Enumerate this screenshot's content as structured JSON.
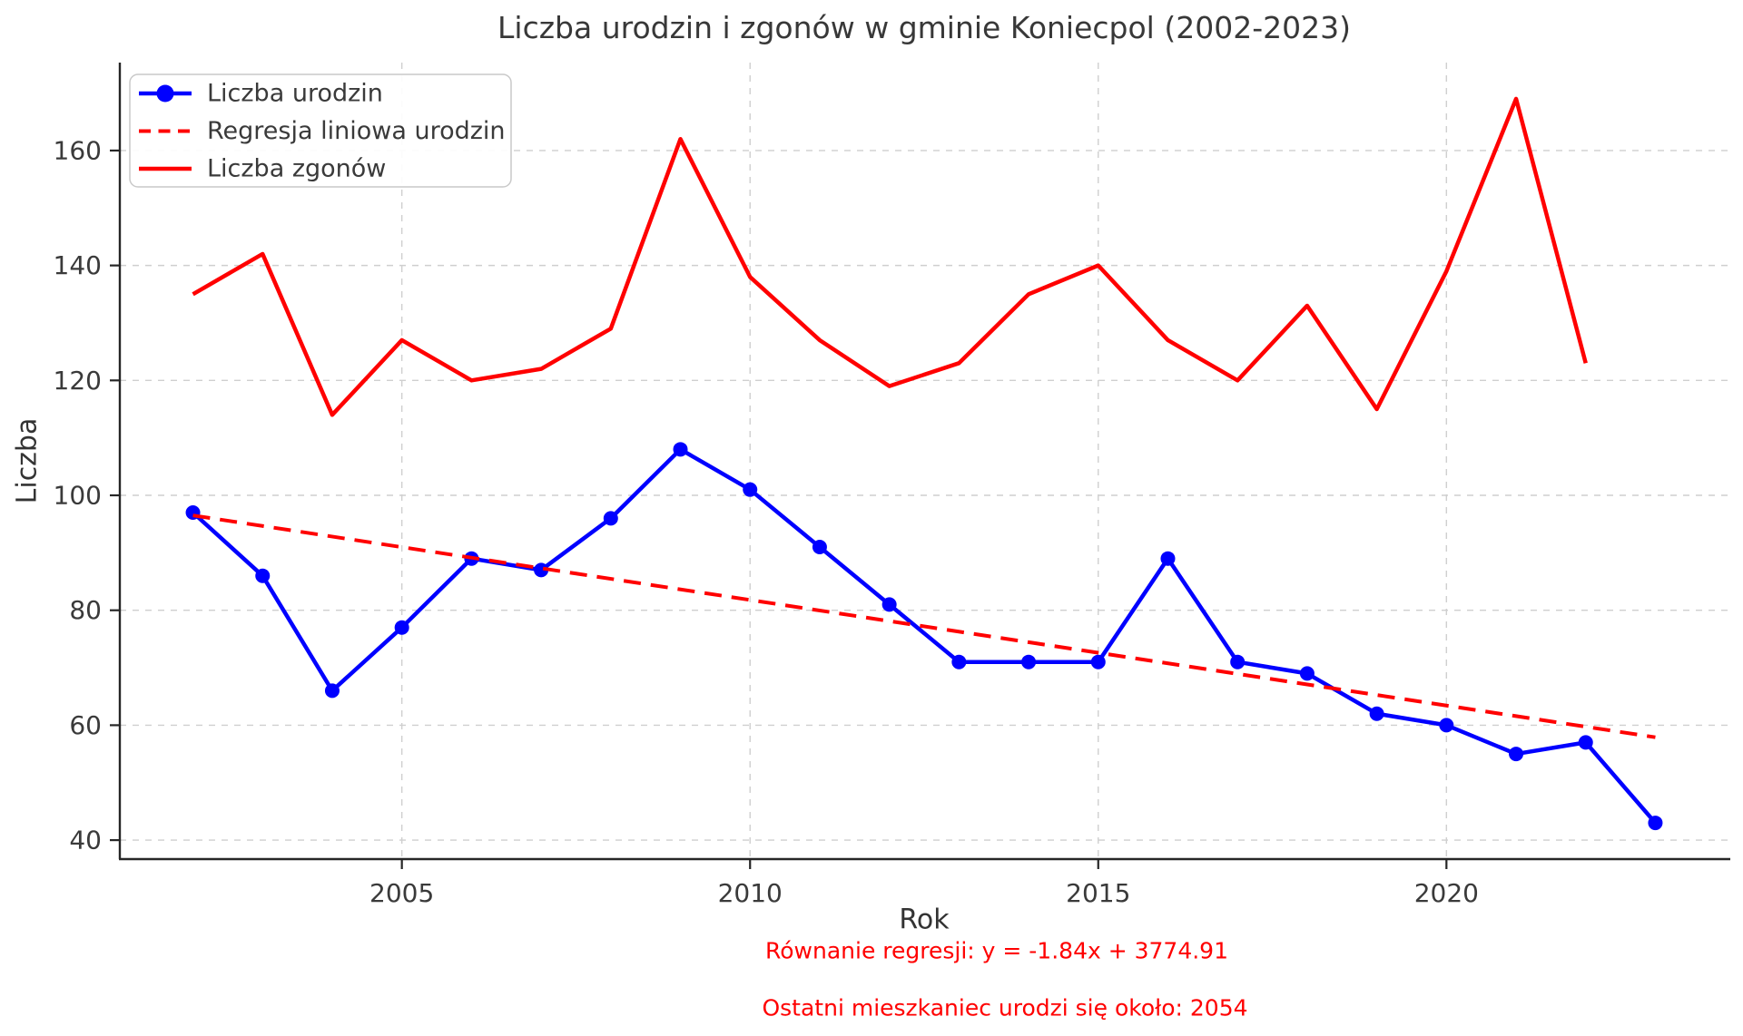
{
  "title": "Liczba urodzin i zgonów w gminie Koniecpol (2002-2023)",
  "axes": {
    "xlabel": "Rok",
    "ylabel": "Liczba",
    "x_ticks": [
      2005,
      2010,
      2015,
      2020
    ],
    "y_ticks": [
      40,
      60,
      80,
      100,
      120,
      140,
      160
    ]
  },
  "annotations": {
    "regression_equation": "Równanie regresji: y = -1.84x + 3774.91",
    "last_resident": "Ostatni mieszkaniec urodzi się około: 2054",
    "color": "#ff0000"
  },
  "colors": {
    "births": "#0000ff",
    "deaths": "#ff0000",
    "regression": "#ff0000",
    "grid": "#cfcfcf",
    "spine": "#262626",
    "tick_label": "#3a3a3a",
    "legend_border": "#c9c9c9",
    "legend_bg": "#ffffff"
  },
  "chart_data": {
    "type": "line",
    "title": "Liczba urodzin i zgonów w gminie Koniecpol (2002-2023)",
    "xlabel": "Rok",
    "ylabel": "Liczba",
    "xlim": [
      2000.95,
      2024.05
    ],
    "ylim": [
      36.7,
      175.3
    ],
    "x_ticks": [
      2005,
      2010,
      2015,
      2020
    ],
    "y_ticks": [
      40,
      60,
      80,
      100,
      120,
      140,
      160
    ],
    "grid": true,
    "legend_position": "upper left",
    "series": [
      {
        "name": "Liczba urodzin",
        "style": "solid_marker",
        "color": "#0000ff",
        "x": [
          2002,
          2003,
          2004,
          2005,
          2006,
          2007,
          2008,
          2009,
          2010,
          2011,
          2012,
          2013,
          2014,
          2015,
          2016,
          2017,
          2018,
          2019,
          2020,
          2021,
          2022,
          2023
        ],
        "values": [
          97,
          86,
          66,
          77,
          89,
          87,
          96,
          108,
          101,
          91,
          81,
          71,
          71,
          71,
          89,
          71,
          69,
          62,
          60,
          55,
          57,
          43
        ]
      },
      {
        "name": "Regresja liniowa urodzin",
        "style": "dashed",
        "color": "#ff0000",
        "x": [
          2002,
          2023
        ],
        "values": [
          96.5,
          57.9
        ]
      },
      {
        "name": "Liczba zgonów",
        "style": "solid",
        "color": "#ff0000",
        "x": [
          2002,
          2003,
          2004,
          2005,
          2006,
          2007,
          2008,
          2009,
          2010,
          2011,
          2012,
          2013,
          2014,
          2015,
          2016,
          2017,
          2018,
          2019,
          2020,
          2021,
          2022
        ],
        "values": [
          135,
          142,
          114,
          127,
          120,
          122,
          129,
          162,
          138,
          127,
          119,
          123,
          135,
          140,
          127,
          120,
          133,
          115,
          139,
          169,
          123
        ]
      }
    ]
  }
}
